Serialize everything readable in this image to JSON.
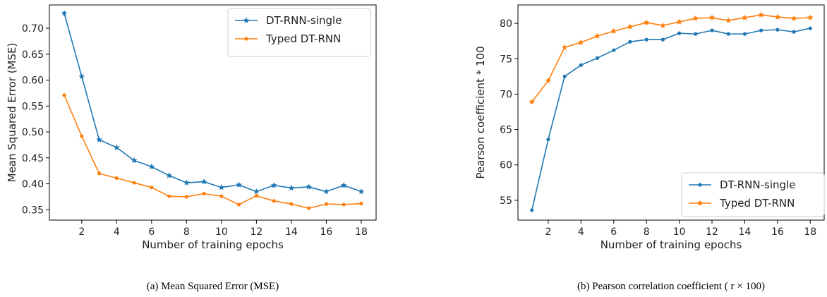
{
  "colors": {
    "series1": "#1f77b4",
    "series2": "#ff7f0e",
    "axis": "#000000"
  },
  "chart_data": [
    {
      "type": "line",
      "caption": "(a) Mean Squared Error (MSE)",
      "xlabel": "Number of training epochs",
      "ylabel": "Mean Squared Error (MSE)",
      "x": [
        1,
        2,
        3,
        4,
        5,
        6,
        7,
        8,
        9,
        10,
        11,
        12,
        13,
        14,
        15,
        16,
        17,
        18
      ],
      "xlim": [
        0.15,
        18.85
      ],
      "ylim": [
        0.33,
        0.745
      ],
      "xticks": [
        2,
        4,
        6,
        8,
        10,
        12,
        14,
        16,
        18
      ],
      "yticks": [
        0.35,
        0.4,
        0.45,
        0.5,
        0.55,
        0.6,
        0.65,
        0.7
      ],
      "ytick_labels": [
        "0.35",
        "0.40",
        "0.45",
        "0.50",
        "0.55",
        "0.60",
        "0.65",
        "0.70"
      ],
      "legend_position": "top-right",
      "series": [
        {
          "name": "DT-RNN-single",
          "marker": "star",
          "color": "#1f77b4",
          "values": [
            0.729,
            0.607,
            0.485,
            0.47,
            0.445,
            0.433,
            0.416,
            0.402,
            0.404,
            0.393,
            0.398,
            0.385,
            0.397,
            0.392,
            0.394,
            0.385,
            0.397,
            0.385
          ]
        },
        {
          "name": "Typed DT-RNN",
          "marker": "dot",
          "color": "#ff7f0e",
          "values": [
            0.571,
            0.492,
            0.42,
            0.411,
            0.402,
            0.393,
            0.376,
            0.375,
            0.381,
            0.376,
            0.36,
            0.377,
            0.367,
            0.361,
            0.353,
            0.361,
            0.36,
            0.362
          ]
        }
      ]
    },
    {
      "type": "line",
      "caption": "(b) Pearson correlation coefficient ( r × 100)",
      "xlabel": "Number of training epochs",
      "ylabel": "Pearson coefficient * 100",
      "x": [
        1,
        2,
        3,
        4,
        5,
        6,
        7,
        8,
        9,
        10,
        11,
        12,
        13,
        14,
        15,
        16,
        17,
        18
      ],
      "xlim": [
        0.15,
        18.85
      ],
      "ylim": [
        52.2,
        82.6
      ],
      "xticks": [
        2,
        4,
        6,
        8,
        10,
        12,
        14,
        16,
        18
      ],
      "yticks": [
        55,
        60,
        65,
        70,
        75,
        80
      ],
      "ytick_labels": [
        "55",
        "60",
        "65",
        "70",
        "75",
        "80"
      ],
      "legend_position": "bottom-right",
      "series": [
        {
          "name": "DT-RNN-single",
          "marker": "dot",
          "color": "#1f77b4",
          "values": [
            53.6,
            63.6,
            72.5,
            74.1,
            75.1,
            76.2,
            77.4,
            77.7,
            77.7,
            78.6,
            78.5,
            79.0,
            78.5,
            78.5,
            79.0,
            79.1,
            78.8,
            79.3
          ]
        },
        {
          "name": "Typed DT-RNN",
          "marker": "star",
          "color": "#ff7f0e",
          "values": [
            68.9,
            71.9,
            76.6,
            77.3,
            78.2,
            78.9,
            79.5,
            80.1,
            79.7,
            80.2,
            80.7,
            80.8,
            80.4,
            80.8,
            81.2,
            80.9,
            80.7,
            80.8
          ]
        }
      ]
    }
  ]
}
